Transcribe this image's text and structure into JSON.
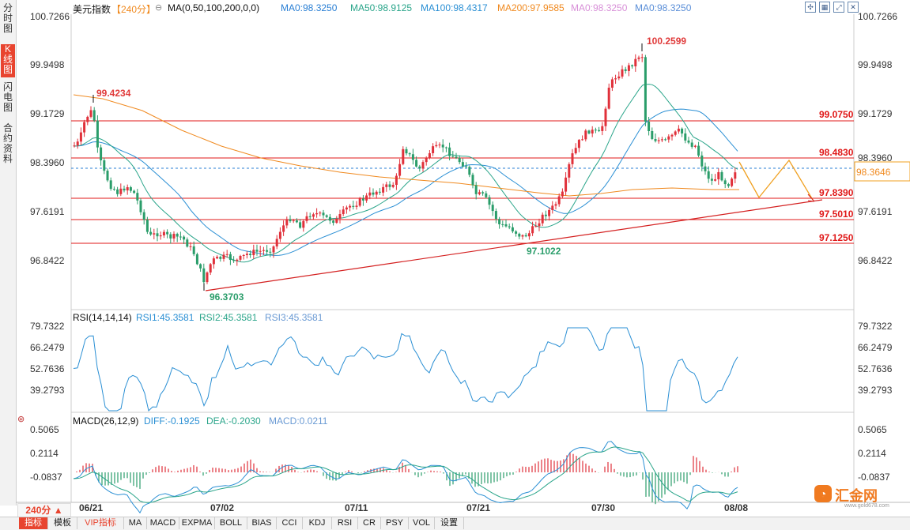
{
  "side_tabs": [
    {
      "label": "分时图",
      "active": false
    },
    {
      "label": "K线图",
      "active": true
    },
    {
      "label": "闪电图",
      "active": false
    },
    {
      "label": "合约资料",
      "active": false
    }
  ],
  "header": {
    "symbol": "美元指数",
    "period": "【240分】",
    "ma_title": "MA(0,50,100,200,0,0)",
    "ma_values": [
      {
        "label": "MA0:98.3250",
        "color": "#2a7fd4"
      },
      {
        "label": "MA50:98.9125",
        "color": "#2aa58a"
      },
      {
        "label": "MA100:98.4317",
        "color": "#2a8fd4"
      },
      {
        "label": "MA200:97.9585",
        "color": "#f08a20"
      },
      {
        "label": "MA0:98.3250",
        "color": "#d890d8"
      },
      {
        "label": "MA0:98.3250",
        "color": "#5b8fd8"
      }
    ]
  },
  "toolbar_icons": [
    "expand-icon",
    "grid-icon",
    "fullscreen-icon",
    "close-icon"
  ],
  "price_axis": [
    "100.7266",
    "99.9498",
    "99.1729",
    "98.3960",
    "97.6191",
    "96.8422"
  ],
  "current_price": "98.3646",
  "levels": [
    "99.0750",
    "98.4830",
    "97.8390",
    "97.5010",
    "97.1250"
  ],
  "annotations": {
    "high1": "99.4234",
    "high2": "100.2599",
    "low1": "96.3703",
    "low2": "97.1022"
  },
  "rsi": {
    "title": "RSI(14,14,14)",
    "values": [
      "RSI1:45.3581",
      "RSI2:45.3581",
      "RSI3:45.3581"
    ],
    "axis": [
      "79.7322",
      "66.2479",
      "52.7636",
      "39.2793"
    ]
  },
  "macd": {
    "title": "MACD(26,12,9)",
    "diff": "DIFF:-0.1925",
    "dea": "DEA:-0.2030",
    "macd": "MACD:0.0211",
    "axis": [
      "0.5065",
      "0.2114",
      "-0.0837"
    ]
  },
  "x_axis": [
    "06/21",
    "07/02",
    "07/11",
    "07/21",
    "07/30",
    "08/08"
  ],
  "period_select": "240分 ▲",
  "bottom_tabs": [
    "指标",
    "模板",
    "VIP指标",
    "MA",
    "MACD",
    "EXPMA",
    "BOLL",
    "BIAS",
    "CCI",
    "KDJ",
    "RSI",
    "CR",
    "PSY",
    "VOL",
    "设置"
  ],
  "logo": {
    "text": "汇金网",
    "sub": "www.gold678.com"
  }
}
